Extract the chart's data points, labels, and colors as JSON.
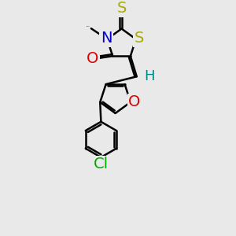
{
  "background_color": "#e9e9e9",
  "bond_color": "#000000",
  "atom_colors": {
    "N": "#0000cc",
    "O_carbonyl": "#dd0000",
    "O_furan": "#dd0000",
    "S_thio": "#aaaa00",
    "S_ring": "#aaaa00",
    "Cl": "#00aa00",
    "H": "#008888",
    "C": "#000000"
  },
  "bond_width": 1.8,
  "font_size_atoms": 14,
  "font_size_methyl": 12,
  "xlim": [
    0,
    10
  ],
  "ylim": [
    0,
    13
  ]
}
